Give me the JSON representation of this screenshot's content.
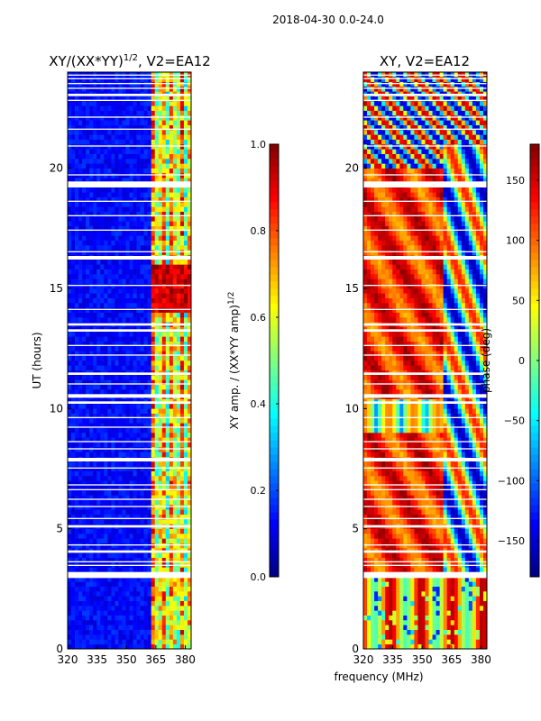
{
  "suptitle": "2018-04-30 0.0-24.0",
  "colors": {
    "background": "#ffffff",
    "missing_row": "#ffffff",
    "axis": "#000000"
  },
  "chart_data": [
    {
      "type": "heatmap",
      "title": "XY/(XX*YY)^{1/2}, V2=EA12",
      "title_main": "XY/(XX*YY)",
      "title_sup": "1/2",
      "title_tail": ", V2=EA12",
      "xlabel": "",
      "ylabel": "UT (hours)",
      "x_range": [
        320,
        383
      ],
      "y_range": [
        0,
        24
      ],
      "x_ticks": [
        320,
        335,
        350,
        365,
        380
      ],
      "y_ticks": [
        0,
        5,
        10,
        15,
        20
      ],
      "colormap": "jet",
      "colorbar": {
        "label_main": "XY amp. / (XX*YY amp)",
        "label_sup": "1/2",
        "range": [
          0.0,
          1.0
        ],
        "ticks": [
          "0.0",
          "0.2",
          "0.4",
          "0.6",
          "0.8",
          "1.0"
        ]
      }
    },
    {
      "type": "heatmap",
      "title": "XY, V2=EA12",
      "xlabel": "frequency (MHz)",
      "ylabel": "",
      "x_range": [
        320,
        383
      ],
      "y_range": [
        0,
        24
      ],
      "x_ticks": [
        320,
        335,
        350,
        365,
        380
      ],
      "y_ticks": [
        0,
        5,
        10,
        15,
        20
      ],
      "colormap": "jet",
      "colorbar": {
        "label": "phase (deg)",
        "range": [
          -180,
          180
        ],
        "ticks": [
          "−150",
          "−100",
          "−50",
          "0",
          "50",
          "100",
          "150"
        ]
      }
    }
  ],
  "flagged_hours": [
    [
      2.95,
      3.2
    ],
    [
      3.45,
      3.5
    ],
    [
      3.6,
      3.65
    ],
    [
      4.0,
      4.1
    ],
    [
      4.3,
      4.35
    ],
    [
      5.05,
      5.15
    ],
    [
      5.4,
      5.45
    ],
    [
      5.9,
      5.95
    ],
    [
      6.2,
      6.25
    ],
    [
      6.6,
      6.65
    ],
    [
      6.8,
      6.85
    ],
    [
      7.5,
      7.55
    ],
    [
      7.8,
      7.95
    ],
    [
      8.3,
      8.35
    ],
    [
      8.6,
      8.65
    ],
    [
      9.2,
      9.25
    ],
    [
      9.6,
      9.65
    ],
    [
      10.2,
      10.3
    ],
    [
      10.45,
      10.6
    ],
    [
      11.0,
      11.05
    ],
    [
      11.4,
      11.5
    ],
    [
      12.2,
      12.25
    ],
    [
      12.6,
      12.65
    ],
    [
      13.2,
      13.3
    ],
    [
      13.45,
      13.55
    ],
    [
      14.1,
      14.15
    ],
    [
      15.1,
      15.15
    ],
    [
      16.2,
      16.35
    ],
    [
      16.5,
      16.55
    ],
    [
      17.4,
      17.45
    ],
    [
      18.0,
      18.05
    ],
    [
      18.6,
      18.65
    ],
    [
      19.2,
      19.45
    ],
    [
      19.7,
      19.75
    ],
    [
      20.9,
      20.95
    ],
    [
      21.6,
      21.65
    ],
    [
      22.1,
      22.15
    ],
    [
      22.8,
      22.85
    ],
    [
      23.0,
      23.1
    ],
    [
      23.3,
      23.35
    ],
    [
      23.5,
      23.55
    ],
    [
      23.7,
      23.75
    ],
    [
      23.85,
      23.9
    ]
  ]
}
